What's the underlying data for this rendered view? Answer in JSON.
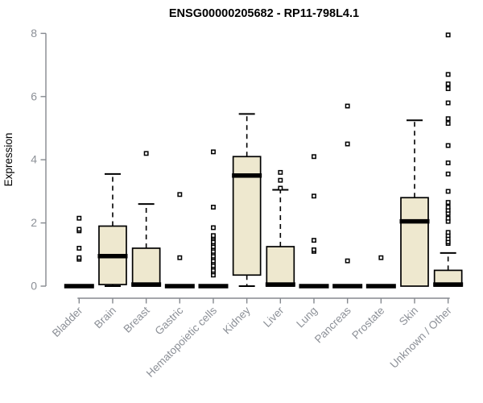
{
  "chart_data": {
    "type": "boxplot",
    "title": "ENSG00000205682 - RP11-798L4.1",
    "ylabel": "Expression",
    "ylim": [
      0,
      8
    ],
    "yticks": [
      "0",
      "2",
      "4",
      "6",
      "8"
    ],
    "grid": false,
    "legend": null,
    "colors": {
      "box_fill": "#EEE8CF",
      "box_stroke": "#000000",
      "median": "#000000",
      "outlier_stroke": "#000000",
      "outlier_fill": "#ffffff",
      "axis": "#85898f",
      "tick_label": "#8c9097",
      "title": "#000000"
    },
    "categories": [
      {
        "name": "Bladder",
        "whisker_low": 0,
        "q1": 0,
        "median": 0,
        "q3": 0,
        "whisker_high": 0,
        "outliers": [
          0.85,
          0.9,
          1.2,
          1.75,
          1.8,
          2.15
        ]
      },
      {
        "name": "Brain",
        "whisker_low": 0,
        "q1": 0.05,
        "median": 0.95,
        "q3": 1.9,
        "whisker_high": 3.55,
        "outliers": []
      },
      {
        "name": "Breast",
        "whisker_low": 0,
        "q1": 0,
        "median": 0.05,
        "q3": 1.2,
        "whisker_high": 2.6,
        "outliers": [
          4.2
        ]
      },
      {
        "name": "Gastric",
        "whisker_low": 0,
        "q1": 0,
        "median": 0,
        "q3": 0,
        "whisker_high": 0,
        "outliers": [
          0.9,
          2.9
        ]
      },
      {
        "name": "Hematopoietic cells",
        "whisker_low": 0,
        "q1": 0,
        "median": 0,
        "q3": 0,
        "whisker_high": 0,
        "outliers": [
          0.35,
          0.45,
          0.5,
          0.6,
          0.65,
          0.75,
          0.8,
          0.9,
          0.95,
          1.05,
          1.1,
          1.2,
          1.25,
          1.35,
          1.4,
          1.5,
          1.55,
          1.6,
          1.85,
          2.5,
          4.25
        ]
      },
      {
        "name": "Kidney",
        "whisker_low": 0,
        "q1": 0.35,
        "median": 3.5,
        "q3": 4.1,
        "whisker_high": 5.45,
        "outliers": []
      },
      {
        "name": "Liver",
        "whisker_low": 0,
        "q1": 0,
        "median": 0.05,
        "q3": 1.25,
        "whisker_high": 3.05,
        "outliers": [
          3.1,
          3.35,
          3.6
        ]
      },
      {
        "name": "Lung",
        "whisker_low": 0,
        "q1": 0,
        "median": 0,
        "q3": 0,
        "whisker_high": 0,
        "outliers": [
          1.1,
          1.15,
          1.45,
          2.85,
          4.1
        ]
      },
      {
        "name": "Pancreas",
        "whisker_low": 0,
        "q1": 0,
        "median": 0,
        "q3": 0,
        "whisker_high": 0,
        "outliers": [
          0.8,
          4.5,
          5.7
        ]
      },
      {
        "name": "Prostate",
        "whisker_low": 0,
        "q1": 0,
        "median": 0,
        "q3": 0,
        "whisker_high": 0,
        "outliers": [
          0.9
        ]
      },
      {
        "name": "Skin",
        "whisker_low": 0,
        "q1": 0,
        "median": 2.05,
        "q3": 2.8,
        "whisker_high": 5.25,
        "outliers": []
      },
      {
        "name": "Unknown / Other",
        "whisker_low": 0,
        "q1": 0,
        "median": 0.05,
        "q3": 0.5,
        "whisker_high": 1.05,
        "outliers": [
          1.35,
          1.4,
          1.5,
          1.6,
          1.7,
          2.05,
          2.15,
          2.3,
          2.4,
          2.5,
          2.65,
          3.0,
          3.55,
          3.9,
          4.45,
          5.15,
          5.3,
          5.8,
          6.25,
          6.4,
          6.7,
          7.95
        ]
      }
    ]
  }
}
